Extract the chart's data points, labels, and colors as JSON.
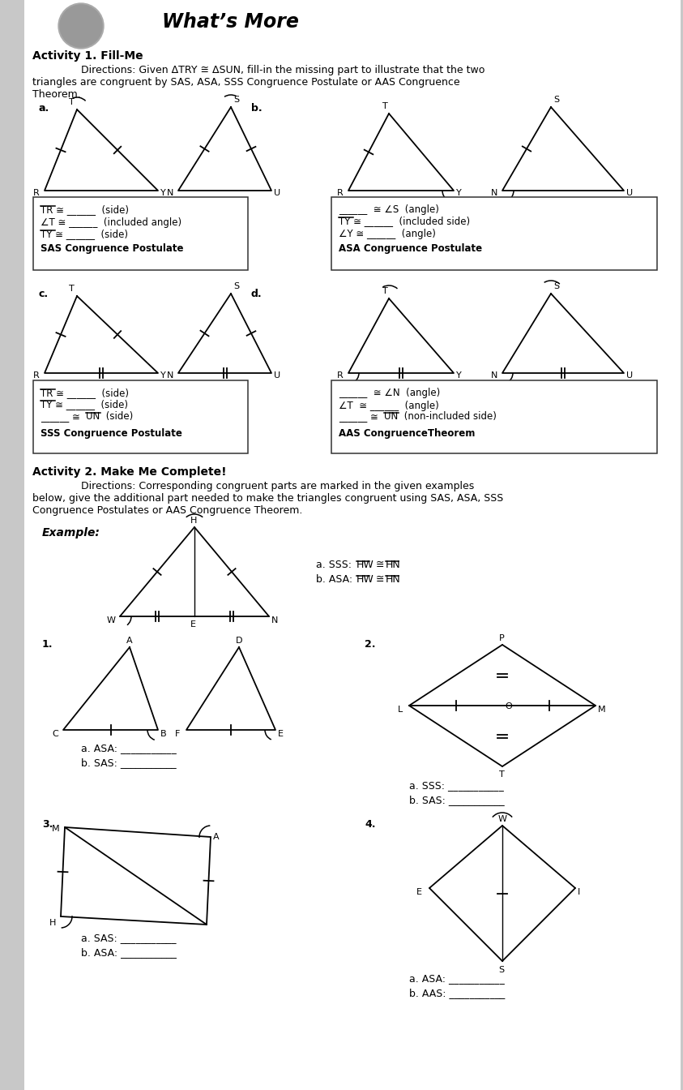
{
  "title": "What’s More",
  "bg_color": "#c8c8c8",
  "white_panel": [
    30,
    0,
    810,
    1344
  ],
  "activity1_title": "Activity 1. Fill-Me",
  "activity1_dir1": "Directions: Given ΔTRY ≅ ΔSUN, fill-in the missing part to illustrate that the two",
  "activity1_dir2": "triangles are congruent by SAS, ASA, SSS Congruence Postulate or AAS Congruence",
  "activity1_dir3": "Theorem.",
  "activity2_title": "Activity 2. Make Me Complete!",
  "activity2_dir1": "Directions: Corresponding congruent parts are marked in the given examples",
  "activity2_dir2": "below, give the additional part needed to make the triangles congruent using SAS, ASA, SSS",
  "activity2_dir3": "Congruence Postulates or AAS Congruence Theorem."
}
